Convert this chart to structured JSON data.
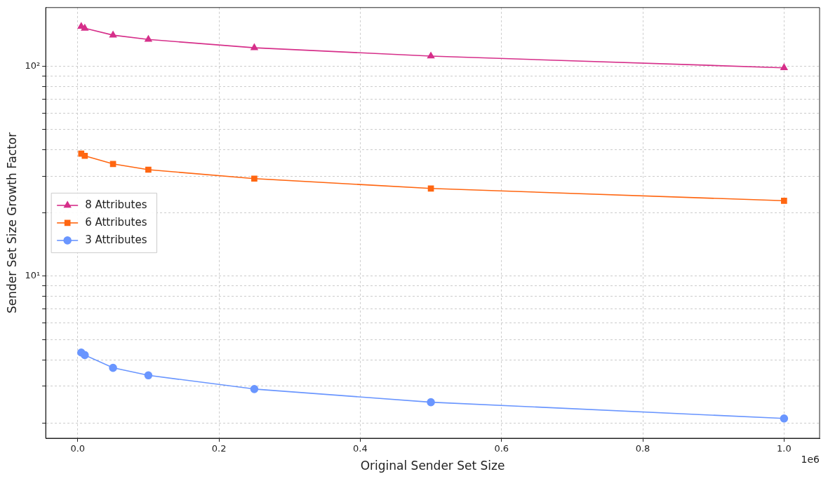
{
  "chart_data": {
    "type": "line",
    "xlabel": "Original Sender Set Size",
    "ylabel": "Sender Set Size Growth Factor",
    "log": "y",
    "grid": true,
    "legend": "center left",
    "line_style": "solid",
    "xlim": [
      -0.0453,
      1.0503
    ],
    "xticks": [
      {
        "value": 0,
        "label": "0.0"
      },
      0.2,
      0.4,
      0.6,
      0.8,
      {
        "value": 1,
        "label": "1.0"
      }
    ],
    "ylim": [
      1.69,
      190.8
    ],
    "yticks": [
      {
        "value": 2,
        "label": null
      },
      {
        "value": 3,
        "label": null
      },
      {
        "value": 4,
        "label": null
      },
      {
        "value": 5,
        "label": null
      },
      {
        "value": 6,
        "label": null
      },
      {
        "value": 7,
        "label": null
      },
      {
        "value": 8,
        "label": null
      },
      {
        "value": 9,
        "label": null
      },
      {
        "value": 10,
        "label": "10¹"
      },
      {
        "value": 20,
        "label": null
      },
      {
        "value": 30,
        "label": null
      },
      {
        "value": 40,
        "label": null
      },
      {
        "value": 50,
        "label": null
      },
      {
        "value": 60,
        "label": null
      },
      {
        "value": 70,
        "label": null
      },
      {
        "value": 80,
        "label": null
      },
      {
        "value": 90,
        "label": null
      },
      {
        "value": 100,
        "label": "10²"
      }
    ],
    "annotations": [
      "1e6"
    ],
    "x": [
      0.005,
      0.01,
      0.05,
      0.1,
      0.25,
      0.5,
      1
    ],
    "series": [
      {
        "name": "8 Attributes",
        "color": "#d62f8a",
        "marker": "triangle",
        "values": [
          155,
          152,
          141,
          134.5,
          122.7,
          112,
          98.5
        ]
      },
      {
        "name": "6 Attributes",
        "color": "#ff6611",
        "marker": "square",
        "values": [
          38.4,
          37.5,
          34.3,
          32.2,
          29.2,
          26.2,
          22.9
        ]
      },
      {
        "name": "3 Attributes",
        "color": "#6a96ff",
        "marker": "circle",
        "values": [
          4.33,
          4.21,
          3.66,
          3.37,
          2.9,
          2.51,
          2.1
        ]
      }
    ]
  }
}
